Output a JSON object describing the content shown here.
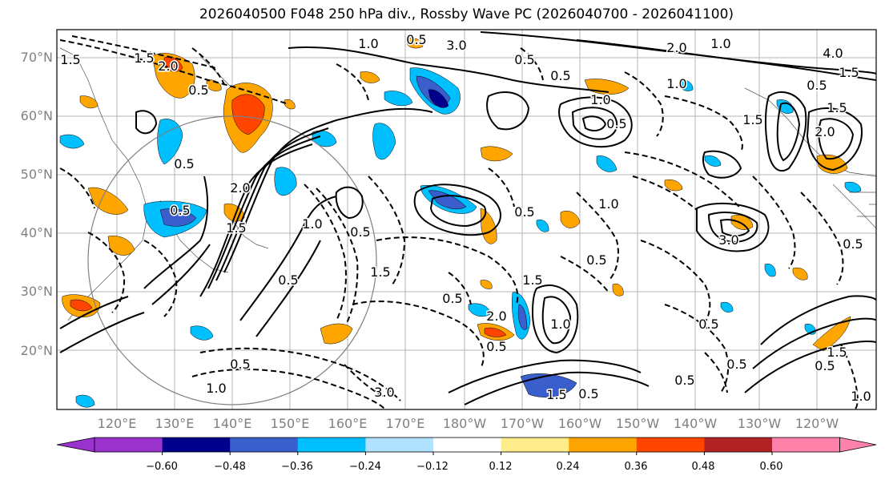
{
  "title": "2026040500 F048 250 hPa div., Rossby Wave PC (2026040700 - 2026041100)",
  "lat_labels": [
    "70°N",
    "60°N",
    "50°N",
    "40°N",
    "30°N",
    "20°N"
  ],
  "lon_labels": [
    "120°E",
    "130°E",
    "140°E",
    "150°E",
    "160°E",
    "170°E",
    "180°W",
    "170°W",
    "160°W",
    "150°W",
    "140°W",
    "130°W",
    "120°W"
  ],
  "colorbar": {
    "tick_labels": [
      "−0.60",
      "−0.48",
      "−0.36",
      "−0.24",
      "−0.12",
      "0.12",
      "0.24",
      "0.36",
      "0.48",
      "0.60"
    ],
    "colors": [
      "#9a32cd",
      "#00008b",
      "#3a5fcd",
      "#00bfff",
      "#b0e2ff",
      "#ffffff",
      "#ffec8b",
      "#ffa500",
      "#ff4500",
      "#b22222",
      "#ff82ab"
    ]
  },
  "contour_labels": [
    "1.5",
    "2.0",
    "0.5",
    "1.0",
    "3.0",
    "1.5",
    "0.5",
    "1.0",
    "2.0",
    "4.0",
    "1.5",
    "0.5",
    "1.0",
    "0.5",
    "0.5",
    "1.0",
    "1.5",
    "2.0",
    "1.5",
    "0.5",
    "3.0",
    "1.0",
    "0.5",
    "0.5",
    "2.0",
    "1.5",
    "0.5",
    "1.0",
    "0.5",
    "1.5",
    "0.5",
    "1.0",
    "3.0",
    "0.5",
    "1.0",
    "0.5",
    "1.5",
    "0.5",
    "2.0",
    "0.5",
    "1.5",
    "0.5",
    "0.5",
    "1.5",
    "0.5",
    "1.0",
    "0.5",
    "0.5",
    "0.5"
  ]
}
